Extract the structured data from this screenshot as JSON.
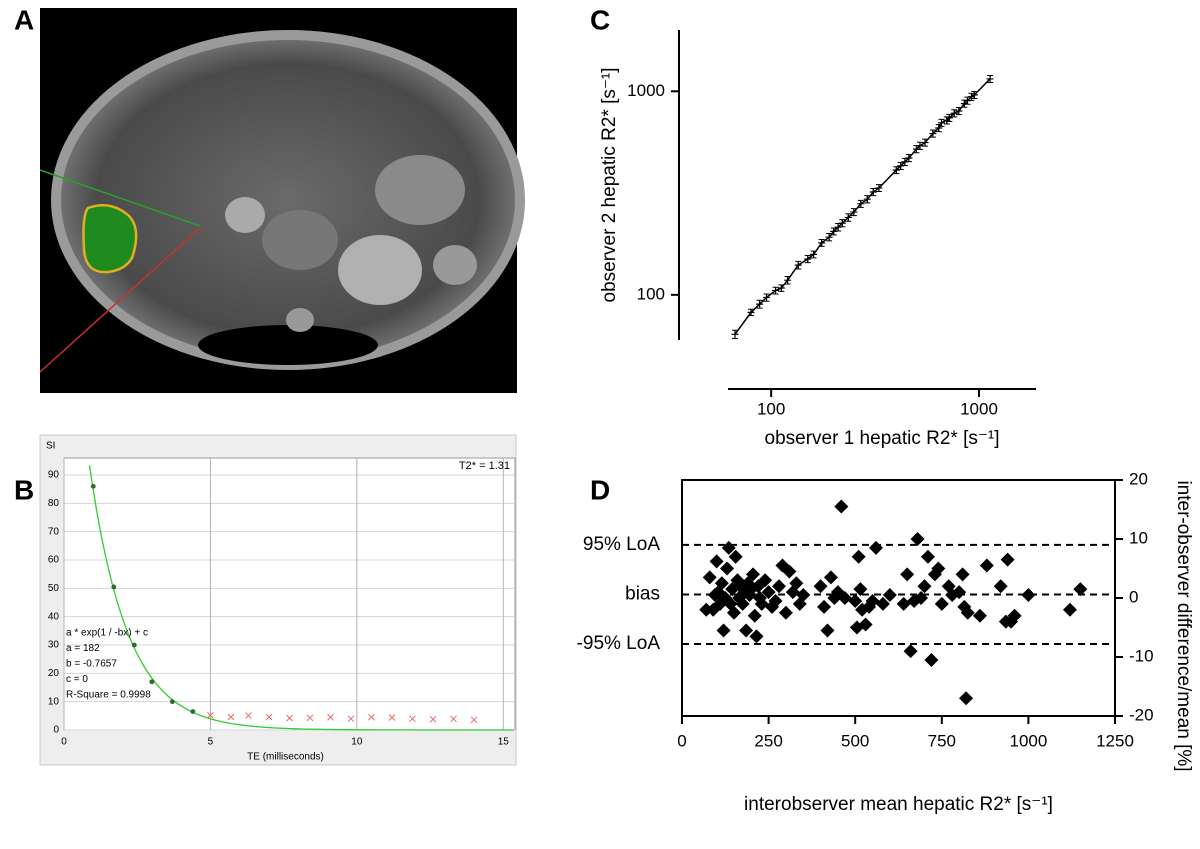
{
  "panel_labels": [
    "A",
    "B",
    "C",
    "D"
  ],
  "chart_data": [
    {
      "type": "fit",
      "y_label": "SI",
      "x_label": "TE (milliseconds)",
      "annotation": {
        "value": 1.31,
        "label": "T2* = 1.31"
      },
      "fit_formula": "a * exp(1 / -bx) + c",
      "fit": {
        "a": {
          "value": 182,
          "label": "a = 182"
        },
        "b": {
          "value": -0.7657,
          "label": "b = -0.7657"
        },
        "c": {
          "value": 0,
          "label": "c = 0"
        }
      },
      "fit_stat": {
        "value": 0.9998,
        "label": "R-Square = 0.9998"
      },
      "fit_color": "#33cc33",
      "xlim": [
        0,
        15.4
      ],
      "ylim": [
        0,
        96
      ],
      "xticks": [
        0,
        5,
        10,
        15
      ],
      "yticks": [
        0,
        10,
        20,
        30,
        40,
        50,
        60,
        70,
        80,
        90
      ],
      "grid": true,
      "series": [
        {
          "color": "#2e6b2e",
          "marker": "dot",
          "x": [
            1.0,
            1.7,
            2.4,
            3.0,
            3.7,
            4.4
          ],
          "values": [
            86,
            50.5,
            30,
            17,
            10,
            6.5
          ]
        },
        {
          "color": "#e86a6a",
          "marker": "cross",
          "x": [
            5.0,
            5.7,
            6.3,
            7.0,
            7.7,
            8.4,
            9.1,
            9.8,
            10.5,
            11.2,
            11.9,
            12.6,
            13.3,
            14.0
          ],
          "values": [
            5.2,
            4.6,
            5.1,
            4.6,
            4.2,
            4.3,
            4.5,
            4.0,
            4.5,
            4.4,
            4.0,
            3.8,
            3.9,
            3.6
          ]
        }
      ]
    },
    {
      "type": "scatter",
      "x_label": "observer 1 hepatic R2* [s⁻¹]",
      "y_label": "observer 2 hepatic R2* [s⁻¹]",
      "xlog": true,
      "ylog": true,
      "xlim": [
        62,
        1880
      ],
      "ylim": [
        60,
        2000
      ],
      "xticks": [
        100,
        1000
      ],
      "yticks": [
        100,
        1000
      ],
      "connect": true,
      "series": [
        {
          "color": "#000000",
          "marker": "plus",
          "x": [
            67,
            80,
            88,
            95,
            105,
            112,
            120,
            135,
            150,
            160,
            175,
            190,
            200,
            210,
            220,
            235,
            250,
            270,
            290,
            310,
            330,
            400,
            420,
            440,
            460,
            500,
            520,
            550,
            600,
            640,
            660,
            700,
            720,
            760,
            800,
            850,
            880,
            920,
            950,
            1130
          ],
          "values": [
            64,
            82,
            90,
            97,
            105,
            108,
            118,
            140,
            150,
            158,
            180,
            192,
            205,
            215,
            225,
            240,
            255,
            280,
            295,
            320,
            335,
            410,
            430,
            450,
            470,
            520,
            540,
            560,
            620,
            660,
            700,
            720,
            740,
            780,
            800,
            870,
            900,
            940,
            960,
            1150
          ],
          "errors": [
            3,
            3,
            4,
            4,
            4,
            4,
            5,
            6,
            6,
            6,
            7,
            8,
            8,
            9,
            9,
            10,
            10,
            11,
            12,
            13,
            13,
            16,
            17,
            18,
            19,
            21,
            22,
            22,
            25,
            26,
            28,
            29,
            30,
            31,
            32,
            35,
            36,
            38,
            38,
            46
          ]
        }
      ]
    },
    {
      "type": "scatter",
      "x_label": "interobserver mean hepatic R2* [s⁻¹]",
      "y_label": "inter-observer difference/mean [%]",
      "frame": true,
      "y_axis_side": "right",
      "xlim": [
        0,
        1250
      ],
      "ylim": [
        -20,
        20
      ],
      "xticks": [
        0,
        250,
        500,
        750,
        1000,
        1250
      ],
      "yticks": [
        -20,
        -10,
        0,
        10,
        20
      ],
      "reference_lines": [
        {
          "label": "95% LoA",
          "value": 9
        },
        {
          "label": "bias",
          "value": 0.6
        },
        {
          "label": "-95% LoA",
          "value": -7.8
        }
      ],
      "series": [
        {
          "color": "#000000",
          "marker": "diamond",
          "x": [
            70,
            80,
            90,
            95,
            100,
            105,
            110,
            115,
            120,
            125,
            130,
            135,
            140,
            145,
            150,
            155,
            160,
            165,
            170,
            175,
            180,
            185,
            190,
            195,
            200,
            205,
            210,
            215,
            220,
            225,
            230,
            240,
            250,
            260,
            270,
            280,
            290,
            300,
            310,
            320,
            330,
            340,
            350,
            400,
            410,
            420,
            430,
            440,
            450,
            460,
            470,
            500,
            505,
            510,
            515,
            520,
            530,
            540,
            550,
            560,
            580,
            600,
            640,
            650,
            660,
            670,
            680,
            690,
            700,
            710,
            720,
            730,
            740,
            750,
            770,
            780,
            800,
            810,
            815,
            820,
            825,
            860,
            880,
            920,
            935,
            940,
            950,
            960,
            1000,
            1120,
            1150
          ],
          "values": [
            -2,
            3.5,
            -2,
            0.5,
            6.2,
            1,
            -1,
            2.5,
            -5.5,
            0,
            5,
            8.5,
            -1,
            1.5,
            -2.5,
            7,
            3,
            0,
            2,
            -1,
            1,
            -5.5,
            2.5,
            0.5,
            1.5,
            4,
            -3,
            -6.5,
            2,
            0,
            -1,
            3,
            1,
            -1.5,
            -0.5,
            2,
            5.5,
            -2.5,
            4.5,
            1,
            2.5,
            -1,
            0.5,
            2,
            -1.5,
            -5.5,
            3.5,
            0,
            1,
            15.5,
            0,
            -0.5,
            -5,
            7,
            1.5,
            -2,
            -4.5,
            -1.5,
            -0.5,
            8.5,
            -1,
            0.5,
            -1,
            4,
            -9,
            -0.5,
            10,
            0,
            2,
            7,
            -10.5,
            4,
            5,
            -1,
            2,
            0.5,
            1,
            4,
            -1.5,
            -17,
            -2.5,
            -3,
            5.5,
            2,
            -4,
            6.5,
            -4,
            -3,
            0.5,
            -2,
            1.5
          ]
        }
      ]
    }
  ]
}
